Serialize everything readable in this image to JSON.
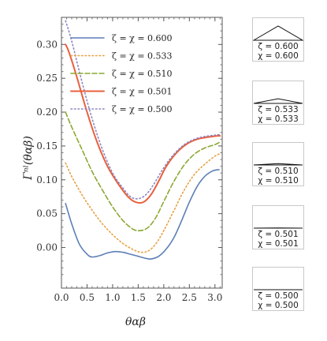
{
  "chart_data": {
    "type": "line",
    "xlabel": "θαβ",
    "ylabel": "Γⁿˡ(θαβ)",
    "xlim": [
      0,
      3.14159
    ],
    "ylim": [
      -0.06,
      0.34
    ],
    "xticks": [
      "0.0",
      "0.5",
      "1.0",
      "1.5",
      "2.0",
      "2.5",
      "3.0"
    ],
    "yticks": [
      "0.00",
      "0.05",
      "0.10",
      "0.15",
      "0.20",
      "0.25",
      "0.30"
    ],
    "legend_position": "top-left",
    "series": [
      {
        "name": "ζ = χ = 0.600",
        "color": "#5b7fb5",
        "dash": "solid",
        "x": [
          0.08,
          0.2,
          0.35,
          0.5,
          0.6,
          0.75,
          0.9,
          1.05,
          1.2,
          1.35,
          1.5,
          1.65,
          1.75,
          1.9,
          2.05,
          2.2,
          2.35,
          2.5,
          2.65,
          2.8,
          2.95,
          3.08
        ],
        "y": [
          0.065,
          0.035,
          0.005,
          -0.01,
          -0.014,
          -0.012,
          -0.008,
          -0.006,
          -0.007,
          -0.01,
          -0.013,
          -0.016,
          -0.017,
          -0.013,
          -0.002,
          0.015,
          0.04,
          0.067,
          0.09,
          0.105,
          0.113,
          0.115
        ]
      },
      {
        "name": "ζ = χ = 0.533",
        "color": "#e8a040",
        "dash": "dot",
        "x": [
          0.08,
          0.2,
          0.4,
          0.6,
          0.8,
          1.0,
          1.2,
          1.4,
          1.55,
          1.7,
          1.85,
          2.0,
          2.2,
          2.4,
          2.6,
          2.8,
          3.0,
          3.08
        ],
        "y": [
          0.125,
          0.105,
          0.078,
          0.055,
          0.035,
          0.019,
          0.006,
          -0.003,
          -0.007,
          -0.005,
          0.006,
          0.025,
          0.055,
          0.085,
          0.108,
          0.123,
          0.135,
          0.138
        ]
      },
      {
        "name": "ζ = χ = 0.510",
        "color": "#8aa832",
        "dash": "dash",
        "x": [
          0.08,
          0.2,
          0.4,
          0.6,
          0.8,
          1.0,
          1.2,
          1.4,
          1.55,
          1.7,
          1.85,
          2.0,
          2.2,
          2.4,
          2.6,
          2.8,
          3.0,
          3.08
        ],
        "y": [
          0.2,
          0.178,
          0.145,
          0.112,
          0.085,
          0.06,
          0.04,
          0.027,
          0.025,
          0.03,
          0.045,
          0.068,
          0.098,
          0.122,
          0.138,
          0.147,
          0.152,
          0.155
        ]
      },
      {
        "name": "ζ = χ = 0.501",
        "color": "#e8603c",
        "dash": "solid",
        "x": [
          0.08,
          0.15,
          0.3,
          0.5,
          0.7,
          0.9,
          1.1,
          1.3,
          1.45,
          1.6,
          1.75,
          1.9,
          2.05,
          2.25,
          2.45,
          2.65,
          2.85,
          3.05,
          3.1
        ],
        "y": [
          0.3,
          0.288,
          0.252,
          0.2,
          0.155,
          0.12,
          0.095,
          0.075,
          0.067,
          0.067,
          0.078,
          0.098,
          0.12,
          0.14,
          0.153,
          0.16,
          0.163,
          0.165,
          0.165
        ]
      },
      {
        "name": "ζ = χ = 0.500",
        "color": "#8c86c2",
        "dash": "dot",
        "x": [
          0.08,
          0.2,
          0.4,
          0.6,
          0.8,
          1.0,
          1.2,
          1.35,
          1.5,
          1.65,
          1.8,
          2.0,
          2.2,
          2.4,
          2.6,
          2.8,
          3.0,
          3.1
        ],
        "y": [
          0.335,
          0.305,
          0.245,
          0.19,
          0.145,
          0.11,
          0.088,
          0.075,
          0.072,
          0.078,
          0.093,
          0.118,
          0.138,
          0.152,
          0.16,
          0.164,
          0.166,
          0.167
        ]
      }
    ]
  },
  "side_panels": [
    {
      "zeta": "ζ = 0.600",
      "chi": "χ = 0.600",
      "apex": 0.6
    },
    {
      "zeta": "ζ = 0.533",
      "chi": "χ = 0.533",
      "apex": 0.533
    },
    {
      "zeta": "ζ = 0.510",
      "chi": "χ = 0.510",
      "apex": 0.51
    },
    {
      "zeta": "ζ = 0.501",
      "chi": "χ = 0.501",
      "apex": 0.501
    },
    {
      "zeta": "ζ = 0.500",
      "chi": "χ = 0.500",
      "apex": 0.5
    }
  ]
}
